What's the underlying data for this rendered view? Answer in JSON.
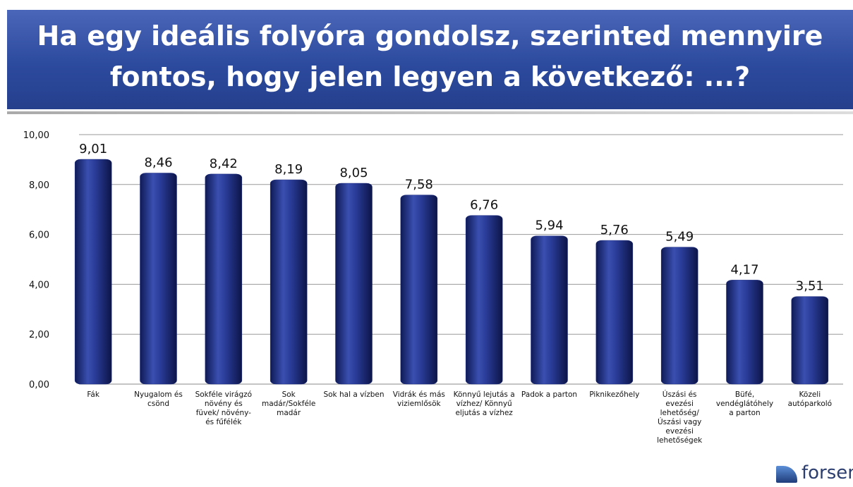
{
  "chart_data": {
    "type": "bar",
    "title": "Ha egy ideális folyóra gondolsz, szerinted mennyire fontos, hogy jelen legyen a következő: ...?",
    "categories": [
      "Fák",
      "Nyugalom és csönd",
      "Sokféle virágzó növény és füvek/ növény- és fűfélék",
      "Sok madár/Sokféle madár",
      "Sok hal a vízben",
      "Vidrák és más viziemlősök",
      "Könnyű lejutás a vízhez/ Könnyű eljutás a vízhez",
      "Padok a parton",
      "Piknikezőhely",
      "Úszási és evezési lehetőség/ Úszási vagy evezési lehetőségek",
      "Büfé, vendéglátóhely a parton",
      "Közeli autóparkoló"
    ],
    "values": [
      9.01,
      8.46,
      8.42,
      8.19,
      8.05,
      7.58,
      6.76,
      5.94,
      5.76,
      5.49,
      4.17,
      3.51
    ],
    "value_labels": [
      "9,01",
      "8,46",
      "8,42",
      "8,19",
      "8,05",
      "7,58",
      "6,76",
      "5,94",
      "5,76",
      "5,49",
      "4,17",
      "3,51"
    ],
    "color": "#1f2e82",
    "ylim": [
      0,
      10
    ],
    "yticks": [
      {
        "value": 0,
        "label": "0,00"
      },
      {
        "value": 2,
        "label": "2,00"
      },
      {
        "value": 4,
        "label": "4,00"
      },
      {
        "value": 6,
        "label": "6,00"
      },
      {
        "value": 8,
        "label": "8,00"
      },
      {
        "value": 10,
        "label": "10,00"
      }
    ],
    "grid": true
  },
  "logo": "forsense"
}
